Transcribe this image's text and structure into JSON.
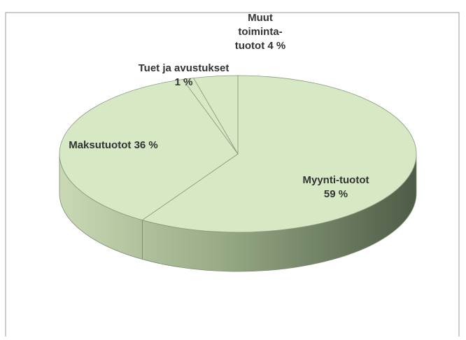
{
  "chart_data": {
    "type": "pie3d",
    "categories": [
      "Myynti-tuotot",
      "Maksutuotot",
      "Tuet ja avustukset",
      "Muut toiminta-tuotot"
    ],
    "values": [
      59,
      36,
      1,
      4
    ],
    "value_labels": [
      "59 %",
      "36 %",
      "1 %",
      "4 %"
    ],
    "color": "#d6e8c4"
  }
}
